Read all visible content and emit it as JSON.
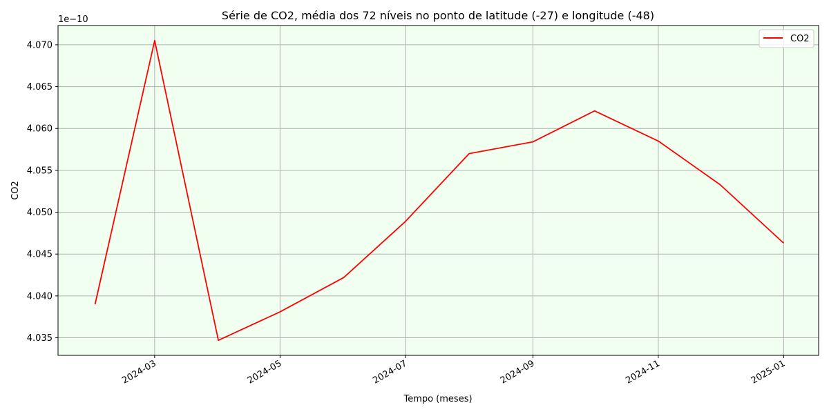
{
  "chart_data": {
    "type": "line",
    "title": "Série de CO2, média dos 72 níveis no ponto de latitude (-27) e longitude (-48)",
    "xlabel": "Tempo (meses)",
    "ylabel": "CO2",
    "y_offset_text": "1e−10",
    "x": [
      "2024-02-01",
      "2024-03-01",
      "2024-04-01",
      "2024-05-01",
      "2024-06-01",
      "2024-07-01",
      "2024-08-01",
      "2024-09-01",
      "2024-10-01",
      "2024-11-01",
      "2024-12-01",
      "2025-01-01"
    ],
    "series": [
      {
        "name": "CO2",
        "color": "#ff0000",
        "values": [
          4.039,
          4.0705,
          4.0347,
          4.0381,
          4.0422,
          4.0489,
          4.057,
          4.0584,
          4.0621,
          4.0585,
          4.0533,
          4.0463
        ]
      }
    ],
    "xlim": [
      "2024-01-14",
      "2025-01-18"
    ],
    "ylim": [
      4.0329,
      4.0723
    ],
    "x_ticks": [
      "2024-03-01",
      "2024-05-01",
      "2024-07-01",
      "2024-09-01",
      "2024-11-01",
      "2025-01-01"
    ],
    "x_tick_labels": [
      "2024-03",
      "2024-05",
      "2024-07",
      "2024-09",
      "2024-11",
      "2025-01"
    ],
    "y_ticks": [
      4.035,
      4.04,
      4.045,
      4.05,
      4.055,
      4.06,
      4.065,
      4.07
    ],
    "y_tick_labels": [
      "4.035",
      "4.040",
      "4.045",
      "4.050",
      "4.055",
      "4.060",
      "4.065",
      "4.070"
    ],
    "grid": true,
    "legend_position": "top-right",
    "background_color": "#f0fff0",
    "grid_color": "#b0b0b0"
  }
}
